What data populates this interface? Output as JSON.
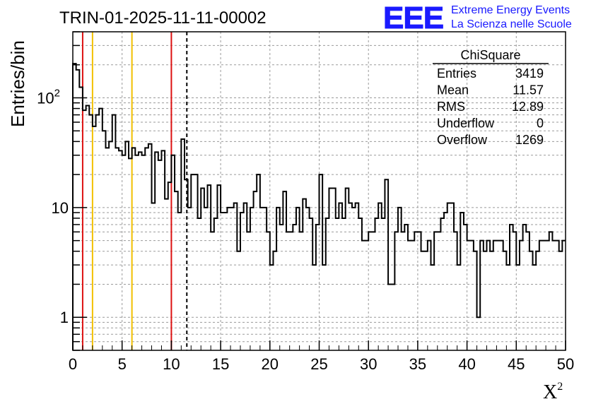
{
  "chart_data": {
    "type": "histogram",
    "title": "TRIN-01-2025-11-11-00002",
    "logo": {
      "text": "EEE",
      "line1": "Extreme Energy Events",
      "line2": "La Scienza nelle Scuole",
      "color": "#1a1aff"
    },
    "xlabel": "X",
    "xlabel_sup": "2",
    "ylabel": "Entries/bin",
    "xlim": [
      0,
      50
    ],
    "ylim": [
      0.5,
      400
    ],
    "yscale": "log",
    "grid": true,
    "bin_width": 1,
    "x_ticks": [
      "0",
      "5",
      "10",
      "15",
      "20",
      "25",
      "30",
      "35",
      "40",
      "45",
      "50"
    ],
    "y_ticks": [
      {
        "value": 1,
        "label": "1",
        "sup": ""
      },
      {
        "value": 10,
        "label": "10",
        "sup": ""
      },
      {
        "value": 100,
        "label": "10",
        "sup": "2"
      }
    ],
    "values": [
      205,
      180,
      125,
      77,
      85,
      70,
      55,
      70,
      80,
      50,
      35,
      40,
      70,
      35,
      33,
      30,
      40,
      28,
      35,
      30,
      32,
      30,
      35,
      38,
      11,
      32,
      27,
      33,
      12,
      17,
      30,
      14,
      9,
      42,
      18,
      10,
      20,
      20,
      8,
      15,
      10,
      16,
      6,
      8,
      16,
      9,
      9,
      10,
      10,
      11,
      4,
      9,
      11,
      6,
      10,
      14,
      20,
      10,
      10,
      6,
      3,
      4,
      10,
      7,
      14,
      6,
      6,
      7,
      10,
      6,
      12,
      10,
      8,
      3,
      7,
      20,
      3,
      8,
      15,
      15,
      8,
      11,
      8,
      15,
      11,
      10,
      11,
      8,
      5,
      5,
      6,
      6,
      8,
      11,
      8,
      18,
      2,
      2,
      6,
      10,
      6,
      7,
      5,
      5,
      6,
      6,
      4,
      4,
      5,
      3,
      6,
      6,
      8,
      9,
      11,
      11,
      6,
      3,
      9,
      7,
      5,
      5,
      4,
      1,
      5,
      4,
      5,
      4,
      5,
      5,
      5,
      4,
      3,
      7,
      6,
      3,
      5,
      7,
      6,
      4,
      3,
      4,
      5,
      5,
      5,
      6,
      5,
      5,
      4,
      5
    ],
    "vertical_lines": [
      {
        "x": 1,
        "color": "#dd1111",
        "style": "solid"
      },
      {
        "x": 2,
        "color": "#f2c000",
        "style": "solid"
      },
      {
        "x": 6,
        "color": "#f2c000",
        "style": "solid"
      },
      {
        "x": 10,
        "color": "#dd1111",
        "style": "solid"
      },
      {
        "x": 11.57,
        "color": "#000000",
        "style": "dashed"
      }
    ],
    "stats": {
      "name": "ChiSquare",
      "rows": [
        {
          "label": "Entries",
          "value": "3419"
        },
        {
          "label": "Mean",
          "value": "11.57"
        },
        {
          "label": "RMS",
          "value": "12.89"
        },
        {
          "label": "Underflow",
          "value": "0"
        },
        {
          "label": "Overflow",
          "value": "1269"
        }
      ]
    }
  }
}
